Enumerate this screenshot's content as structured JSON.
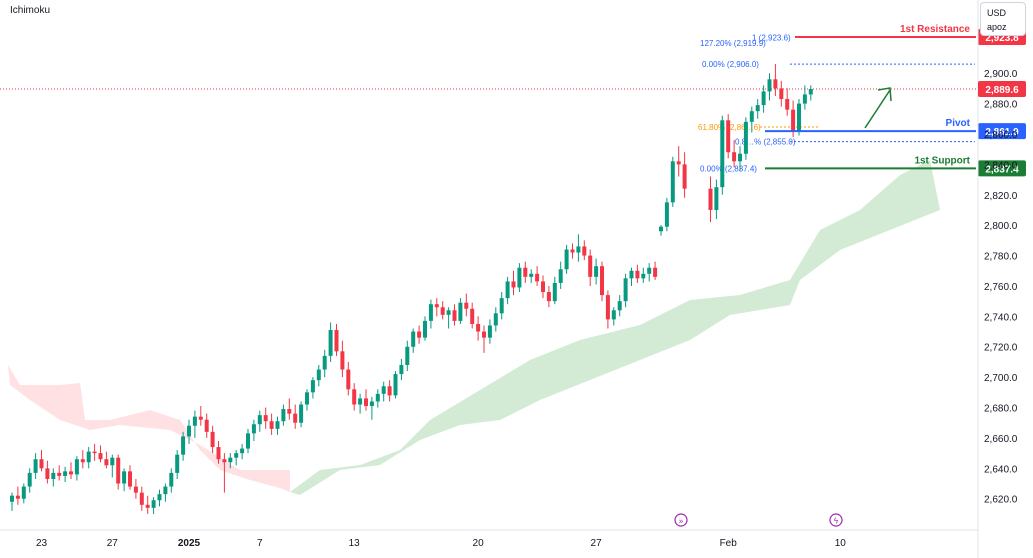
{
  "header": {
    "indicator": "Ichimoku",
    "currency": "USD",
    "scale_mode": "apoz"
  },
  "colors": {
    "up": "#089981",
    "down": "#f23645",
    "resistance": "#f23645",
    "pivot": "#2962ff",
    "support": "#1b7c33",
    "cloud_bull": "#c8e6c9",
    "cloud_bear": "#ffcdd2",
    "fib": "#2962ff",
    "fib_gold": "#ff9800",
    "arrow": "#1b7c33",
    "event_icon": "#9c27b0"
  },
  "chart_data": {
    "type": "candlestick",
    "y_axis": {
      "ylim": [
        2606,
        2935
      ],
      "ticks": [
        2620,
        2640,
        2660,
        2680,
        2700,
        2720,
        2740,
        2760,
        2780,
        2800,
        2820,
        2840,
        2860,
        2880,
        2900
      ],
      "tick_labels": [
        "2,620.0",
        "2,640.0",
        "2,660.0",
        "2,680.0",
        "2,700.0",
        "2,720.0",
        "2,740.0",
        "2,760.0",
        "2,780.0",
        "2,800.0",
        "2,820.0",
        "2,840.0",
        "2,860.0",
        "2,880.0",
        "2,900.0"
      ]
    },
    "x_axis": {
      "tick_labels": [
        "23",
        "27",
        "2025",
        "7",
        "13",
        "20",
        "27",
        "Feb",
        "10"
      ],
      "tick_indices": [
        5,
        17,
        30,
        42,
        58,
        79,
        99,
        118,
        137
      ]
    },
    "last_price": {
      "label": "2,889.6",
      "value": 2889.6
    },
    "levels": [
      {
        "name": "1st Resistance",
        "label": "2,923.8",
        "value": 2923.8,
        "role": "resistance"
      },
      {
        "name": "Pivot",
        "label": "2,861.9",
        "value": 2861.9,
        "role": "pivot"
      },
      {
        "name": "1st Support",
        "label": "2,837.4",
        "value": 2837.4,
        "role": "support"
      }
    ],
    "fib_labels": [
      {
        "text": "1 (2,923.6)",
        "value": 2923.6
      },
      {
        "text": "127.20% (2,919.9)",
        "value": 2919.9
      },
      {
        "text": "0.00% (2,906.0)",
        "value": 2906.0
      },
      {
        "text": "61.80% (2,86…6)",
        "value": 2864.6
      },
      {
        "text": "0.8…% (2,855.0)",
        "value": 2855.0
      },
      {
        "text": "0.00% (2,837.4)",
        "value": 2837.4
      }
    ],
    "candles": [
      {
        "o": 2618,
        "h": 2624,
        "l": 2612,
        "c": 2622
      },
      {
        "o": 2622,
        "h": 2628,
        "l": 2616,
        "c": 2620
      },
      {
        "o": 2620,
        "h": 2630,
        "l": 2617,
        "c": 2628
      },
      {
        "o": 2628,
        "h": 2640,
        "l": 2624,
        "c": 2637
      },
      {
        "o": 2637,
        "h": 2650,
        "l": 2633,
        "c": 2646
      },
      {
        "o": 2646,
        "h": 2652,
        "l": 2638,
        "c": 2640
      },
      {
        "o": 2640,
        "h": 2645,
        "l": 2630,
        "c": 2633
      },
      {
        "o": 2633,
        "h": 2640,
        "l": 2628,
        "c": 2637
      },
      {
        "o": 2637,
        "h": 2642,
        "l": 2632,
        "c": 2635
      },
      {
        "o": 2635,
        "h": 2641,
        "l": 2631,
        "c": 2638
      },
      {
        "o": 2638,
        "h": 2644,
        "l": 2633,
        "c": 2636
      },
      {
        "o": 2636,
        "h": 2648,
        "l": 2632,
        "c": 2646
      },
      {
        "o": 2646,
        "h": 2652,
        "l": 2640,
        "c": 2644
      },
      {
        "o": 2644,
        "h": 2654,
        "l": 2640,
        "c": 2651
      },
      {
        "o": 2651,
        "h": 2656,
        "l": 2645,
        "c": 2650
      },
      {
        "o": 2650,
        "h": 2655,
        "l": 2644,
        "c": 2646
      },
      {
        "o": 2646,
        "h": 2651,
        "l": 2640,
        "c": 2642
      },
      {
        "o": 2642,
        "h": 2649,
        "l": 2634,
        "c": 2647
      },
      {
        "o": 2647,
        "h": 2649,
        "l": 2626,
        "c": 2630
      },
      {
        "o": 2630,
        "h": 2640,
        "l": 2625,
        "c": 2638
      },
      {
        "o": 2638,
        "h": 2642,
        "l": 2626,
        "c": 2628
      },
      {
        "o": 2628,
        "h": 2633,
        "l": 2620,
        "c": 2624
      },
      {
        "o": 2624,
        "h": 2628,
        "l": 2612,
        "c": 2616
      },
      {
        "o": 2616,
        "h": 2622,
        "l": 2610,
        "c": 2614
      },
      {
        "o": 2614,
        "h": 2621,
        "l": 2610,
        "c": 2619
      },
      {
        "o": 2619,
        "h": 2626,
        "l": 2615,
        "c": 2623
      },
      {
        "o": 2623,
        "h": 2630,
        "l": 2618,
        "c": 2628
      },
      {
        "o": 2628,
        "h": 2640,
        "l": 2624,
        "c": 2637
      },
      {
        "o": 2637,
        "h": 2652,
        "l": 2633,
        "c": 2649
      },
      {
        "o": 2649,
        "h": 2664,
        "l": 2645,
        "c": 2661
      },
      {
        "o": 2661,
        "h": 2672,
        "l": 2656,
        "c": 2668
      },
      {
        "o": 2668,
        "h": 2678,
        "l": 2660,
        "c": 2674
      },
      {
        "o": 2674,
        "h": 2681,
        "l": 2668,
        "c": 2672
      },
      {
        "o": 2672,
        "h": 2676,
        "l": 2660,
        "c": 2664
      },
      {
        "o": 2664,
        "h": 2668,
        "l": 2650,
        "c": 2654
      },
      {
        "o": 2654,
        "h": 2658,
        "l": 2643,
        "c": 2646
      },
      {
        "o": 2646,
        "h": 2650,
        "l": 2624,
        "c": 2644
      },
      {
        "o": 2644,
        "h": 2650,
        "l": 2640,
        "c": 2647
      },
      {
        "o": 2647,
        "h": 2652,
        "l": 2642,
        "c": 2650
      },
      {
        "o": 2650,
        "h": 2656,
        "l": 2646,
        "c": 2653
      },
      {
        "o": 2653,
        "h": 2666,
        "l": 2650,
        "c": 2663
      },
      {
        "o": 2663,
        "h": 2672,
        "l": 2658,
        "c": 2669
      },
      {
        "o": 2669,
        "h": 2678,
        "l": 2664,
        "c": 2675
      },
      {
        "o": 2675,
        "h": 2680,
        "l": 2666,
        "c": 2671
      },
      {
        "o": 2671,
        "h": 2676,
        "l": 2662,
        "c": 2666
      },
      {
        "o": 2666,
        "h": 2674,
        "l": 2662,
        "c": 2671
      },
      {
        "o": 2671,
        "h": 2682,
        "l": 2668,
        "c": 2679
      },
      {
        "o": 2679,
        "h": 2686,
        "l": 2672,
        "c": 2676
      },
      {
        "o": 2676,
        "h": 2682,
        "l": 2666,
        "c": 2670
      },
      {
        "o": 2670,
        "h": 2684,
        "l": 2667,
        "c": 2682
      },
      {
        "o": 2682,
        "h": 2692,
        "l": 2678,
        "c": 2690
      },
      {
        "o": 2690,
        "h": 2700,
        "l": 2686,
        "c": 2698
      },
      {
        "o": 2698,
        "h": 2708,
        "l": 2694,
        "c": 2705
      },
      {
        "o": 2705,
        "h": 2718,
        "l": 2700,
        "c": 2714
      },
      {
        "o": 2714,
        "h": 2736,
        "l": 2710,
        "c": 2731
      },
      {
        "o": 2731,
        "h": 2735,
        "l": 2714,
        "c": 2717
      },
      {
        "o": 2717,
        "h": 2724,
        "l": 2700,
        "c": 2705
      },
      {
        "o": 2705,
        "h": 2710,
        "l": 2688,
        "c": 2692
      },
      {
        "o": 2692,
        "h": 2696,
        "l": 2678,
        "c": 2682
      },
      {
        "o": 2682,
        "h": 2689,
        "l": 2676,
        "c": 2686
      },
      {
        "o": 2686,
        "h": 2692,
        "l": 2678,
        "c": 2681
      },
      {
        "o": 2681,
        "h": 2687,
        "l": 2672,
        "c": 2684
      },
      {
        "o": 2684,
        "h": 2692,
        "l": 2680,
        "c": 2689
      },
      {
        "o": 2689,
        "h": 2697,
        "l": 2684,
        "c": 2694
      },
      {
        "o": 2694,
        "h": 2698,
        "l": 2684,
        "c": 2688
      },
      {
        "o": 2688,
        "h": 2704,
        "l": 2686,
        "c": 2702
      },
      {
        "o": 2702,
        "h": 2712,
        "l": 2698,
        "c": 2708
      },
      {
        "o": 2708,
        "h": 2724,
        "l": 2704,
        "c": 2720
      },
      {
        "o": 2720,
        "h": 2732,
        "l": 2716,
        "c": 2730
      },
      {
        "o": 2730,
        "h": 2734,
        "l": 2722,
        "c": 2726
      },
      {
        "o": 2726,
        "h": 2740,
        "l": 2724,
        "c": 2737
      },
      {
        "o": 2737,
        "h": 2751,
        "l": 2732,
        "c": 2748
      },
      {
        "o": 2748,
        "h": 2752,
        "l": 2740,
        "c": 2746
      },
      {
        "o": 2746,
        "h": 2750,
        "l": 2738,
        "c": 2741
      },
      {
        "o": 2741,
        "h": 2746,
        "l": 2732,
        "c": 2744
      },
      {
        "o": 2744,
        "h": 2748,
        "l": 2734,
        "c": 2737
      },
      {
        "o": 2737,
        "h": 2752,
        "l": 2735,
        "c": 2749
      },
      {
        "o": 2749,
        "h": 2755,
        "l": 2740,
        "c": 2745
      },
      {
        "o": 2745,
        "h": 2749,
        "l": 2732,
        "c": 2735
      },
      {
        "o": 2735,
        "h": 2740,
        "l": 2724,
        "c": 2730
      },
      {
        "o": 2730,
        "h": 2734,
        "l": 2716,
        "c": 2726
      },
      {
        "o": 2726,
        "h": 2738,
        "l": 2722,
        "c": 2734
      },
      {
        "o": 2734,
        "h": 2746,
        "l": 2730,
        "c": 2742
      },
      {
        "o": 2742,
        "h": 2756,
        "l": 2738,
        "c": 2752
      },
      {
        "o": 2752,
        "h": 2766,
        "l": 2748,
        "c": 2763
      },
      {
        "o": 2763,
        "h": 2770,
        "l": 2754,
        "c": 2759
      },
      {
        "o": 2759,
        "h": 2775,
        "l": 2756,
        "c": 2772
      },
      {
        "o": 2772,
        "h": 2776,
        "l": 2762,
        "c": 2766
      },
      {
        "o": 2766,
        "h": 2771,
        "l": 2762,
        "c": 2768
      },
      {
        "o": 2768,
        "h": 2773,
        "l": 2760,
        "c": 2763
      },
      {
        "o": 2763,
        "h": 2767,
        "l": 2752,
        "c": 2756
      },
      {
        "o": 2756,
        "h": 2760,
        "l": 2746,
        "c": 2750
      },
      {
        "o": 2750,
        "h": 2766,
        "l": 2748,
        "c": 2762
      },
      {
        "o": 2762,
        "h": 2776,
        "l": 2758,
        "c": 2771
      },
      {
        "o": 2771,
        "h": 2787,
        "l": 2768,
        "c": 2784
      },
      {
        "o": 2784,
        "h": 2788,
        "l": 2778,
        "c": 2782
      },
      {
        "o": 2782,
        "h": 2794,
        "l": 2776,
        "c": 2786
      },
      {
        "o": 2786,
        "h": 2790,
        "l": 2777,
        "c": 2780
      },
      {
        "o": 2780,
        "h": 2784,
        "l": 2760,
        "c": 2766
      },
      {
        "o": 2766,
        "h": 2778,
        "l": 2761,
        "c": 2773
      },
      {
        "o": 2773,
        "h": 2776,
        "l": 2750,
        "c": 2754
      },
      {
        "o": 2754,
        "h": 2757,
        "l": 2732,
        "c": 2738
      },
      {
        "o": 2738,
        "h": 2746,
        "l": 2734,
        "c": 2744
      },
      {
        "o": 2744,
        "h": 2754,
        "l": 2740,
        "c": 2750
      },
      {
        "o": 2750,
        "h": 2768,
        "l": 2746,
        "c": 2765
      },
      {
        "o": 2765,
        "h": 2772,
        "l": 2760,
        "c": 2770
      },
      {
        "o": 2770,
        "h": 2774,
        "l": 2762,
        "c": 2765
      },
      {
        "o": 2765,
        "h": 2772,
        "l": 2762,
        "c": 2768
      },
      {
        "o": 2768,
        "h": 2775,
        "l": 2763,
        "c": 2772
      },
      {
        "o": 2772,
        "h": 2776,
        "l": 2764,
        "c": 2766
      },
      {
        "o": 2796,
        "h": 2800,
        "l": 2793,
        "c": 2799
      },
      {
        "o": 2799,
        "h": 2818,
        "l": 2796,
        "c": 2815
      },
      {
        "o": 2815,
        "h": 2845,
        "l": 2812,
        "c": 2842
      },
      {
        "o": 2842,
        "h": 2852,
        "l": 2832,
        "c": 2840
      },
      {
        "o": 2840,
        "h": 2848,
        "l": 2818,
        "c": 2824
      },
      {
        "o": 2824,
        "h": 2832,
        "l": 2802,
        "c": 2810
      },
      {
        "o": 2810,
        "h": 2830,
        "l": 2804,
        "c": 2825
      },
      {
        "o": 2825,
        "h": 2872,
        "l": 2820,
        "c": 2869
      },
      {
        "o": 2869,
        "h": 2873,
        "l": 2844,
        "c": 2848
      },
      {
        "o": 2848,
        "h": 2856,
        "l": 2838,
        "c": 2842
      },
      {
        "o": 2842,
        "h": 2852,
        "l": 2836,
        "c": 2847
      },
      {
        "o": 2847,
        "h": 2871,
        "l": 2843,
        "c": 2868
      },
      {
        "o": 2868,
        "h": 2878,
        "l": 2861,
        "c": 2875
      },
      {
        "o": 2875,
        "h": 2883,
        "l": 2870,
        "c": 2879
      },
      {
        "o": 2879,
        "h": 2892,
        "l": 2874,
        "c": 2888
      },
      {
        "o": 2888,
        "h": 2900,
        "l": 2882,
        "c": 2896
      },
      {
        "o": 2896,
        "h": 2906,
        "l": 2885,
        "c": 2890
      },
      {
        "o": 2890,
        "h": 2895,
        "l": 2878,
        "c": 2883
      },
      {
        "o": 2883,
        "h": 2890,
        "l": 2872,
        "c": 2876
      },
      {
        "o": 2876,
        "h": 2882,
        "l": 2858,
        "c": 2862
      },
      {
        "o": 2862,
        "h": 2883,
        "l": 2859,
        "c": 2880
      },
      {
        "o": 2880,
        "h": 2892,
        "l": 2876,
        "c": 2886
      },
      {
        "o": 2886,
        "h": 2892,
        "l": 2882,
        "c": 2889.6
      }
    ]
  }
}
